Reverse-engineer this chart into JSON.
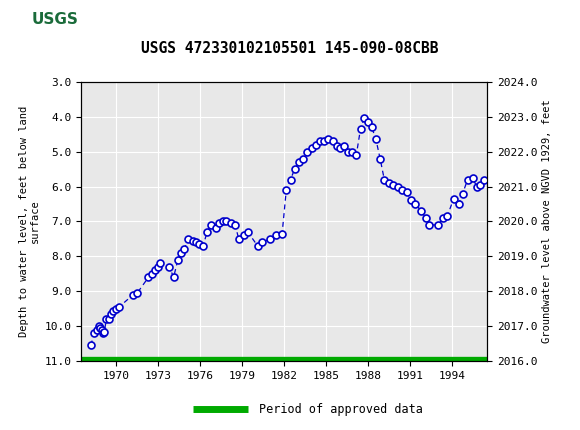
{
  "title": "USGS 472330102105501 145-090-08CBB",
  "ylabel_left": "Depth to water level, feet below land\nsurface",
  "ylabel_right": "Groundwater level above NGVD 1929, feet",
  "header_color": "#1a6b3a",
  "plot_bg": "#e8e8e8",
  "line_color": "#0000cc",
  "marker_color": "#0000cc",
  "legend_label": "Period of approved data",
  "legend_color": "#00aa00",
  "ylim_left": [
    3.0,
    11.0
  ],
  "ylim_right": [
    2016.0,
    2024.0
  ],
  "xlim": [
    1967.5,
    1996.5
  ],
  "xticks": [
    1970,
    1973,
    1976,
    1979,
    1982,
    1985,
    1988,
    1991,
    1994
  ],
  "yticks_left": [
    3.0,
    4.0,
    5.0,
    6.0,
    7.0,
    8.0,
    9.0,
    10.0,
    11.0
  ],
  "yticks_right": [
    2016.0,
    2017.0,
    2018.0,
    2019.0,
    2020.0,
    2021.0,
    2022.0,
    2023.0,
    2024.0
  ],
  "data_x": [
    1968.2,
    1968.4,
    1968.6,
    1968.75,
    1968.85,
    1968.95,
    1969.05,
    1969.15,
    1969.3,
    1969.5,
    1969.65,
    1969.8,
    1970.0,
    1970.2,
    1971.2,
    1971.5,
    1972.3,
    1972.55,
    1972.75,
    1972.95,
    1973.1,
    1973.8,
    1974.1,
    1974.4,
    1974.65,
    1974.85,
    1975.15,
    1975.45,
    1975.7,
    1975.9,
    1976.2,
    1976.5,
    1976.75,
    1977.1,
    1977.35,
    1977.6,
    1977.85,
    1978.2,
    1978.5,
    1978.75,
    1979.1,
    1979.4,
    1980.1,
    1980.4,
    1981.0,
    1981.4,
    1981.85,
    1982.15,
    1982.45,
    1982.75,
    1983.05,
    1983.35,
    1983.65,
    1983.95,
    1984.25,
    1984.55,
    1984.85,
    1985.15,
    1985.45,
    1985.75,
    1985.95,
    1986.25,
    1986.55,
    1986.85,
    1987.15,
    1987.45,
    1987.7,
    1987.95,
    1988.25,
    1988.55,
    1988.85,
    1989.15,
    1989.45,
    1989.8,
    1990.1,
    1990.4,
    1990.75,
    1991.05,
    1991.35,
    1991.8,
    1992.1,
    1992.35,
    1993.0,
    1993.35,
    1993.65,
    1994.1,
    1994.45,
    1994.75,
    1995.1,
    1995.45,
    1995.75,
    1995.95,
    1996.25
  ],
  "data_y": [
    10.55,
    10.2,
    10.1,
    10.0,
    10.05,
    10.1,
    10.2,
    10.15,
    9.8,
    9.8,
    9.65,
    9.55,
    9.5,
    9.45,
    9.1,
    9.05,
    8.6,
    8.5,
    8.4,
    8.3,
    8.2,
    8.3,
    8.6,
    8.1,
    7.9,
    7.8,
    7.5,
    7.55,
    7.6,
    7.65,
    7.7,
    7.3,
    7.1,
    7.2,
    7.05,
    7.0,
    7.0,
    7.05,
    7.1,
    7.5,
    7.4,
    7.3,
    7.7,
    7.6,
    7.5,
    7.4,
    7.35,
    6.1,
    5.8,
    5.5,
    5.3,
    5.2,
    5.0,
    4.9,
    4.8,
    4.7,
    4.7,
    4.65,
    4.7,
    4.85,
    4.9,
    4.85,
    5.0,
    5.0,
    5.1,
    4.35,
    4.05,
    4.15,
    4.3,
    4.65,
    5.2,
    5.8,
    5.9,
    5.95,
    6.0,
    6.1,
    6.15,
    6.4,
    6.5,
    6.7,
    6.9,
    7.1,
    7.1,
    6.9,
    6.85,
    6.35,
    6.5,
    6.2,
    5.8,
    5.75,
    6.0,
    5.95,
    5.8
  ]
}
